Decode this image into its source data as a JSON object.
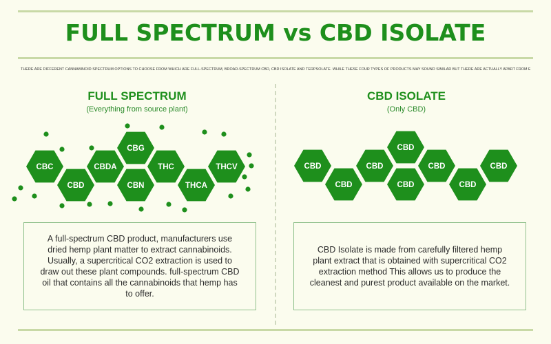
{
  "title": "FULL SPECTRUM  vs  CBD ISOLATE",
  "intro": "There are different cannabinoid spectrum options to choose from which are full-spectrum, broad-spectrum CBD, CBD isolate and terpsolate. While these four types of products may sound similar but there are actually apart from each other.",
  "colors": {
    "accent": "#1e8f1c",
    "hex_fill": "#1e8f1c",
    "background": "#fbfcee"
  },
  "full_spectrum": {
    "heading": "FULL SPECTRUM",
    "subheading": "(Everything from source plant)",
    "molecules": [
      "CBC",
      "CBD",
      "CBDA",
      "CBG",
      "CBN",
      "THC",
      "THCA",
      "THCV"
    ],
    "description": "A full-spectrum CBD product, manufacturers use dried hemp plant matter to extract cannabinoids. Usually, a supercritical CO2 extraction is used to draw out these plant compounds. full-spectrum CBD oil that contains all the cannabinoids that hemp has to offer."
  },
  "cbd_isolate": {
    "heading": "CBD ISOLATE",
    "subheading": "(Only CBD)",
    "molecules": [
      "CBD",
      "CBD",
      "CBD",
      "CBD",
      "CBD",
      "CBD",
      "CBD",
      "CBD"
    ],
    "description": "CBD Isolate is made from carefully filtered hemp plant extract that is obtained with supercritical CO2 extraction method This allows us to produce the cleanest and purest product available on the market."
  }
}
